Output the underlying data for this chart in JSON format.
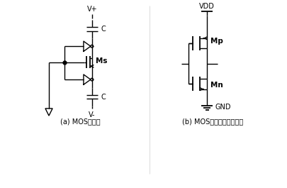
{
  "bg_color": "#ffffff",
  "line_color": "#000000",
  "title_a": "(a) MOS开关管",
  "title_b": "(b) MOS开关管中的反相器",
  "label_Vplus": "V+",
  "label_Vminus": "V-",
  "label_C": "C",
  "label_Ms": "Ms",
  "label_VDD": "VDD",
  "label_GND": "GND",
  "label_Mp": "Mp",
  "label_Mn": "Mn"
}
